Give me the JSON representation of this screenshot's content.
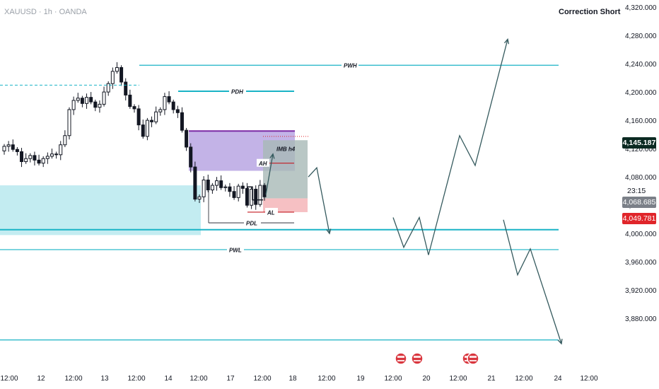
{
  "header": {
    "symbol": "XAUUSD · 1h · OANDA",
    "title": "Correction Short"
  },
  "price_tags": {
    "current": "4,145.187",
    "countdown": "23:15",
    "mid": "4,068.685",
    "low": "4,049.781"
  },
  "colors": {
    "level_line": "#1ab3c6",
    "supply_zone": "#b9a6e3",
    "supply_line": "#7b2aa5",
    "demand_zone": "#c3ecf1",
    "target_zone": "#a7b9b7",
    "stop_zone": "#f6c0c3",
    "candle": "#131722",
    "projection": "#355a5e",
    "tag_current": "#0b2a22",
    "tag_mid": "#7b8088",
    "tag_low": "#e0252a"
  },
  "chart_data": {
    "type": "candlestick",
    "symbol": "XAUUSD",
    "timeframe": "1h",
    "y_range": [
      3860,
      4335
    ],
    "y_ticks": [
      "4,320.000",
      "4,280.000",
      "4,240.000",
      "4,200.000",
      "4,160.000",
      "4,120.000",
      "4,080.000",
      "4,040.000",
      "4,000.000",
      "3,960.000",
      "3,920.000",
      "3,880.000"
    ],
    "x_ticks": [
      "12:00",
      "12",
      "12:00",
      "13",
      "12:00",
      "14",
      "12:00",
      "17",
      "12:00",
      "18",
      "12:00",
      "19",
      "12:00",
      "20",
      "12:00",
      "21",
      "12:00",
      "24",
      "12:00"
    ],
    "levels": [
      {
        "label": "PWH",
        "price": 4244
      },
      {
        "label": "PDH",
        "price": 4210
      },
      {
        "label": "AH",
        "price": 4116
      },
      {
        "label": "AL",
        "price": 4052
      },
      {
        "label": "PDL",
        "price": 4038
      },
      {
        "label": "PWL",
        "price": 4003
      }
    ],
    "zone_labels": [
      "IMB h4"
    ],
    "closes": [
      4138,
      4140,
      4134,
      4131,
      4118,
      4122,
      4126,
      4120,
      4116,
      4122,
      4125,
      4128,
      4127,
      4140,
      4152,
      4186,
      4198,
      4201,
      4194,
      4202,
      4196,
      4189,
      4193,
      4209,
      4220,
      4236,
      4241,
      4222,
      4205,
      4190,
      4187,
      4166,
      4151,
      4172,
      4170,
      4183,
      4186,
      4203,
      4196,
      4186,
      4182,
      4159,
      4137,
      4111,
      4069,
      4072,
      4094,
      4081,
      4087,
      4093,
      4084,
      4085,
      4079,
      4071,
      4086,
      4083,
      4061,
      4082,
      4062,
      4087,
      4072
    ],
    "projections": [
      {
        "from": "4,108 (day 18 02:00)",
        "to": "4,030 (day 18 12:00)"
      },
      {
        "path": "4,045 → 4,006 → 4,045 → 3,996 → 4,152 → 4,113 → 4,278",
        "end": "day 21 18:00"
      },
      {
        "path": "4,042 → 3,970 → 4,004 → 3,880",
        "end": "day 24 08:00"
      }
    ],
    "event_icons": 4
  }
}
